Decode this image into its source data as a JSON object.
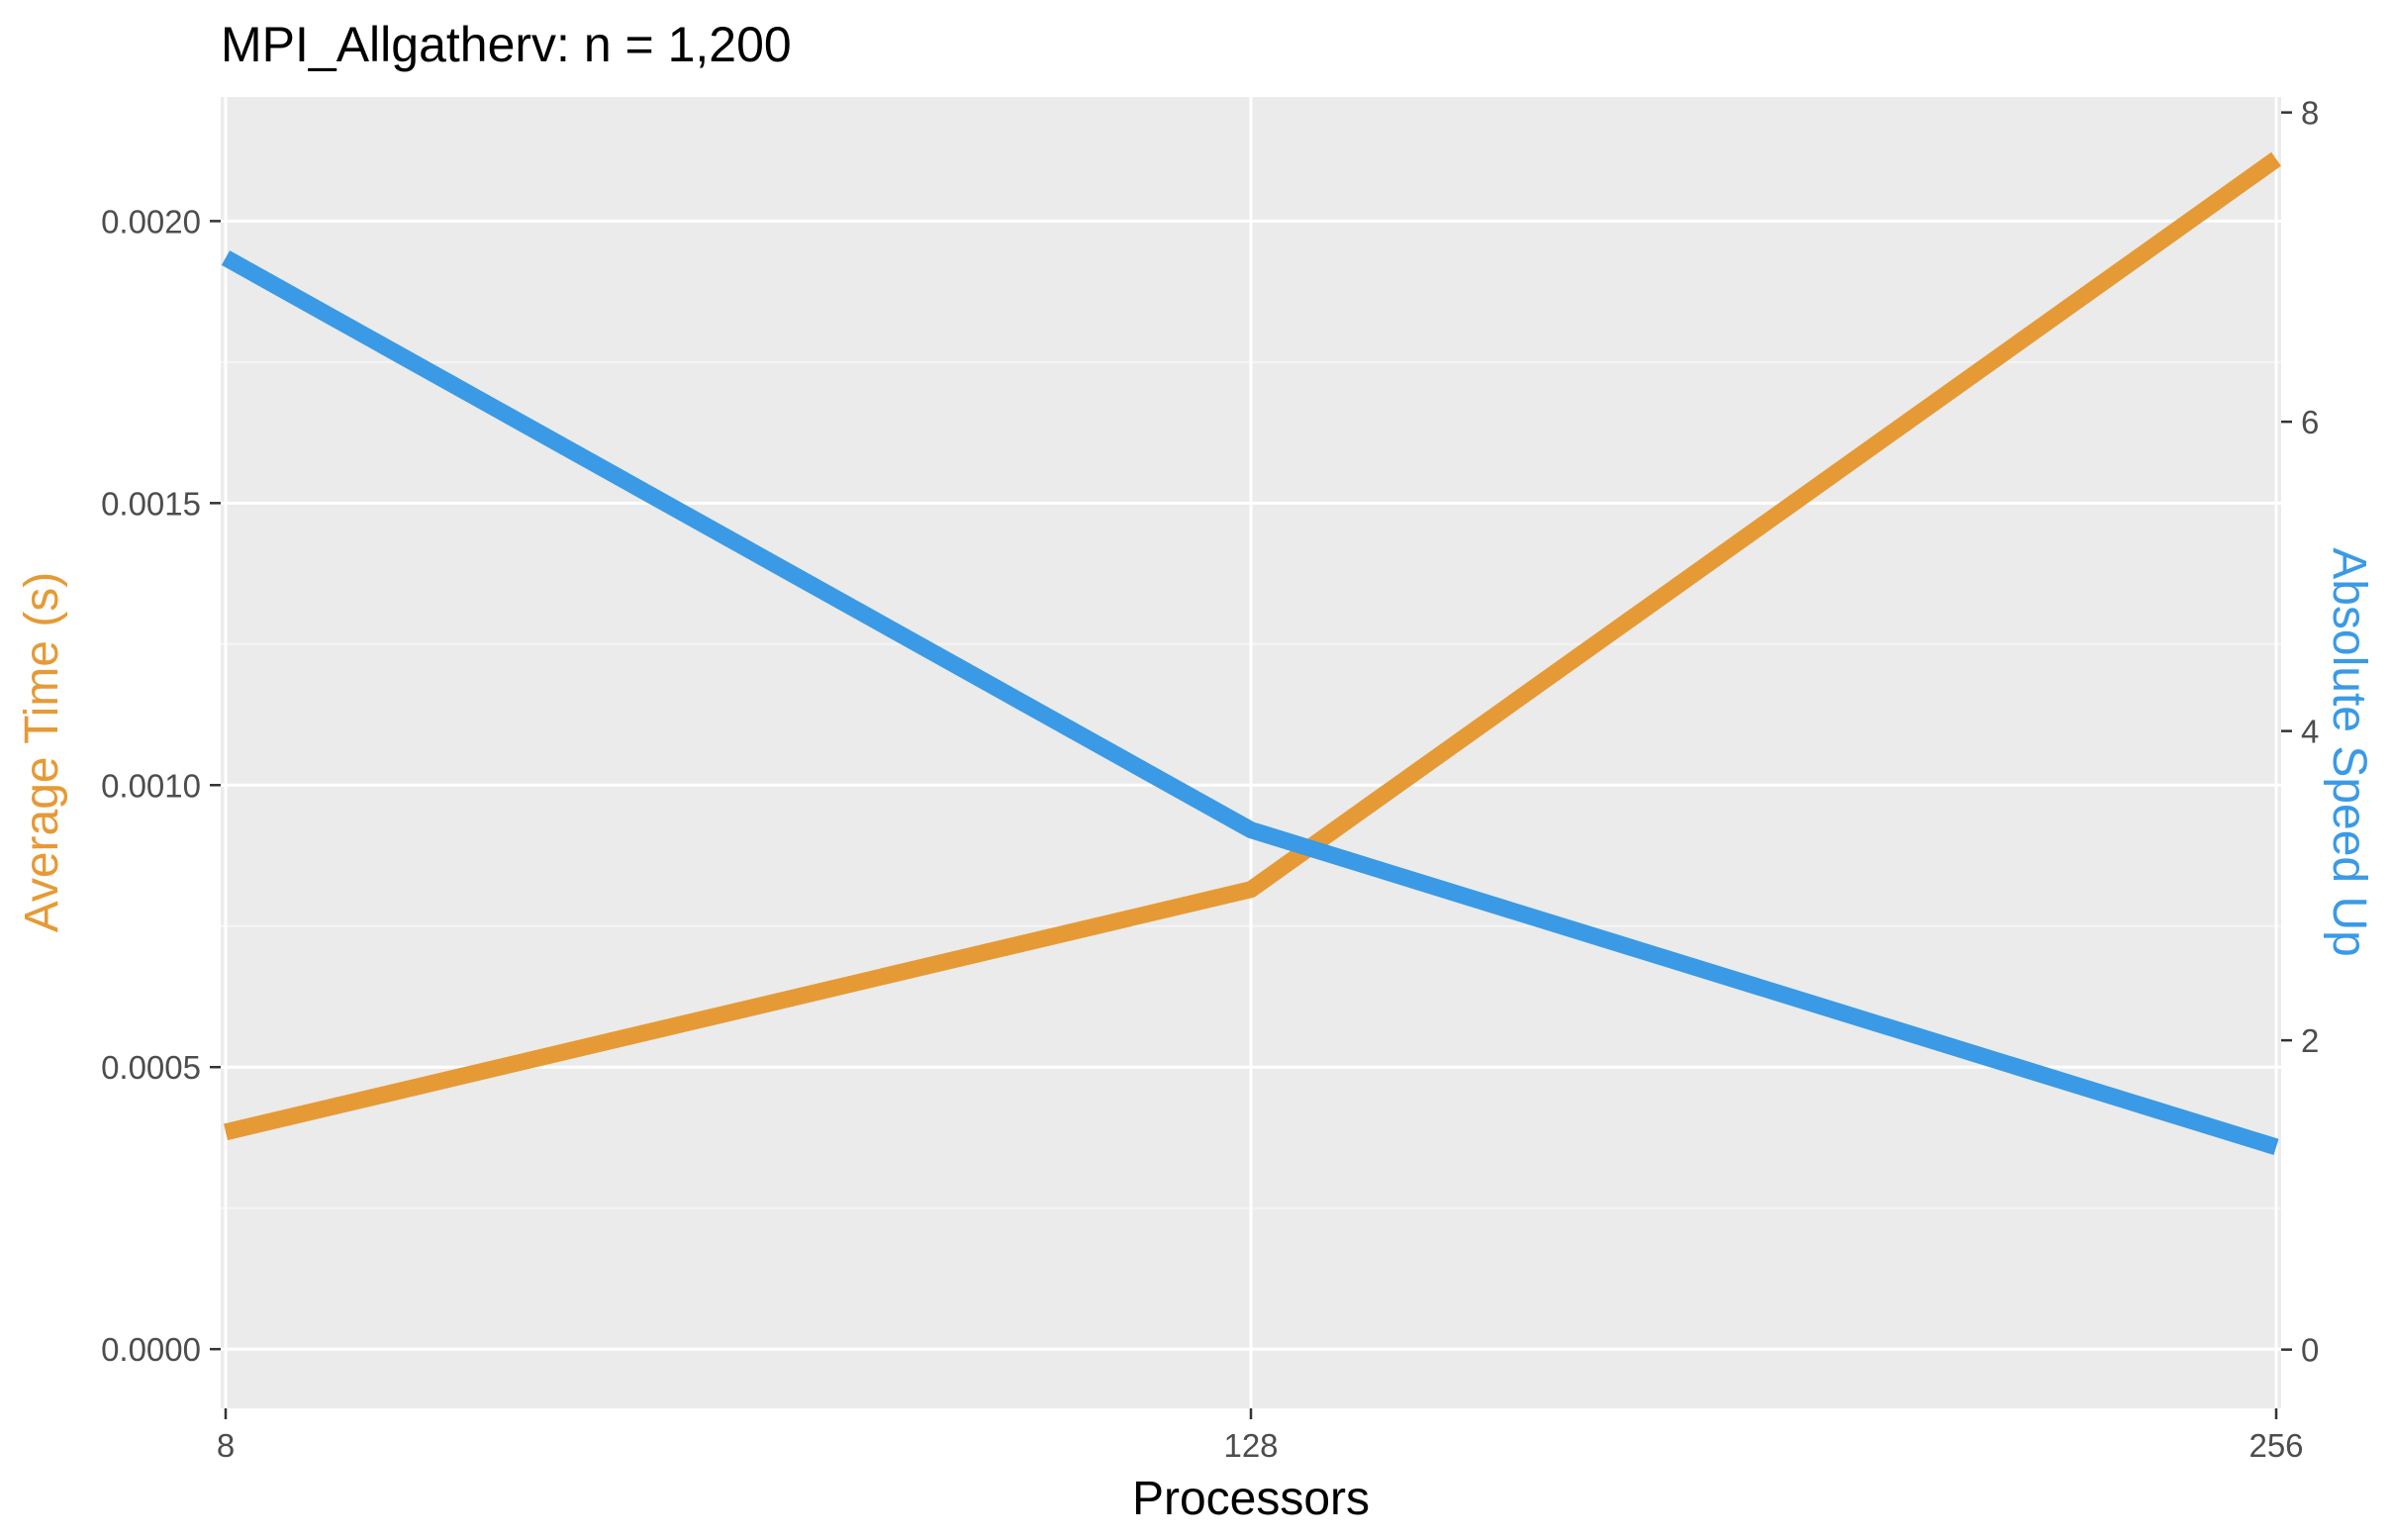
{
  "chart_data": {
    "type": "line",
    "title": "MPI_Allgatherv: n = 1,200",
    "xlabel": "Processors",
    "ylabel_left": "Average Time (s)",
    "ylabel_right": "Absolute Speed Up",
    "x": [
      8,
      128,
      256
    ],
    "x_tick_labels": [
      "8",
      "128",
      "256"
    ],
    "x_scale": "categorical (evenly spaced)",
    "ylim_left": [
      -0.000105,
      0.00222
    ],
    "yticks_left": [
      "0.0000",
      "0.0005",
      "0.0010",
      "0.0015",
      "0.0020"
    ],
    "ylim_right": [
      -0.38,
      8.1
    ],
    "yticks_right": [
      "0",
      "2",
      "4",
      "6",
      "8"
    ],
    "grid": true,
    "legend": "none",
    "series": [
      {
        "axis": "left",
        "color": "#E69A35",
        "values": [
          0.000385,
          0.000815,
          0.00211
        ]
      },
      {
        "axis": "right",
        "color": "#3A9AE6",
        "values": [
          7.06,
          3.36,
          1.31
        ]
      }
    ]
  },
  "colors": {
    "panel_background": "#EBEBEB",
    "grid_major": "#FFFFFF",
    "grid_minor": "#F5F5F5",
    "axis_text": "#4D4D4D",
    "time_series": "#E69A35",
    "speedup_series": "#3A9AE6"
  }
}
